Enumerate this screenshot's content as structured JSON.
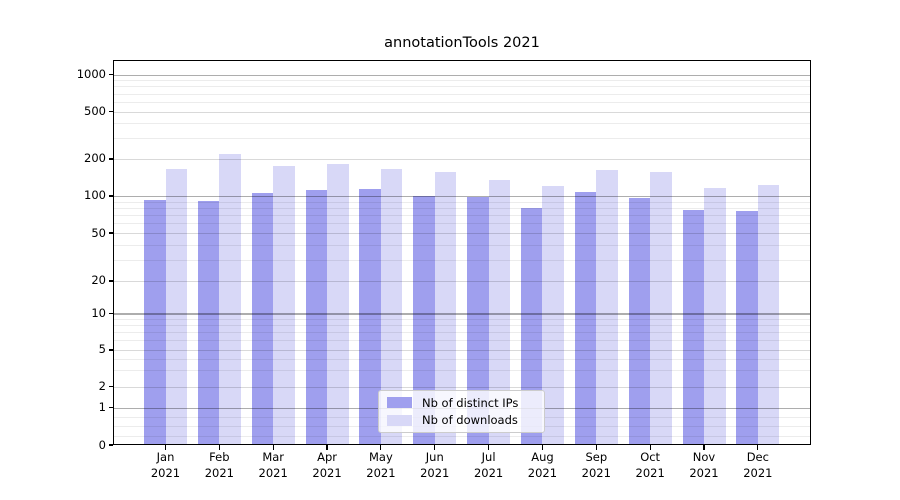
{
  "chart_data": {
    "type": "bar",
    "title": "annotationTools 2021",
    "x": [
      "Jan",
      "Feb",
      "Mar",
      "Apr",
      "May",
      "Jun",
      "Jul",
      "Aug",
      "Sep",
      "Oct",
      "Nov",
      "Dec"
    ],
    "x_year": "2021",
    "series": [
      {
        "name": "Nb of distinct IPs",
        "color": "#9f9fee",
        "values": [
          93,
          91,
          105,
          112,
          113,
          100,
          99,
          80,
          107,
          96,
          77,
          76
        ]
      },
      {
        "name": "Nb of downloads",
        "color": "#d8d8f7",
        "values": [
          165,
          220,
          175,
          183,
          166,
          157,
          135,
          120,
          163,
          157,
          117,
          123
        ]
      }
    ],
    "yscale": "symlog",
    "ylim": [
      0,
      1100
    ],
    "yticks": [
      0,
      1,
      2,
      5,
      10,
      20,
      50,
      100,
      200,
      500,
      1000
    ],
    "ytick_major": [
      1,
      10,
      100,
      1000
    ],
    "grid_minor_values": [
      0.25,
      0.5,
      0.75,
      3,
      4,
      6,
      7,
      8,
      9,
      30,
      40,
      60,
      70,
      80,
      90,
      300,
      400,
      600,
      700,
      800,
      900
    ],
    "grid": "on",
    "legend_position": "lower center"
  },
  "colors": {
    "background": "#ffffff",
    "bar_distinct_ips": "#9f9fee",
    "bar_downloads": "#d8d8f7",
    "grid_major": "rgba(0,0,0,0.32)",
    "grid_labeled": "rgba(0,0,0,0.15)",
    "grid_minor": "rgba(0,0,0,0.075)",
    "spine": "#000000",
    "legend_border": "#cccccc",
    "text": "#000000"
  }
}
